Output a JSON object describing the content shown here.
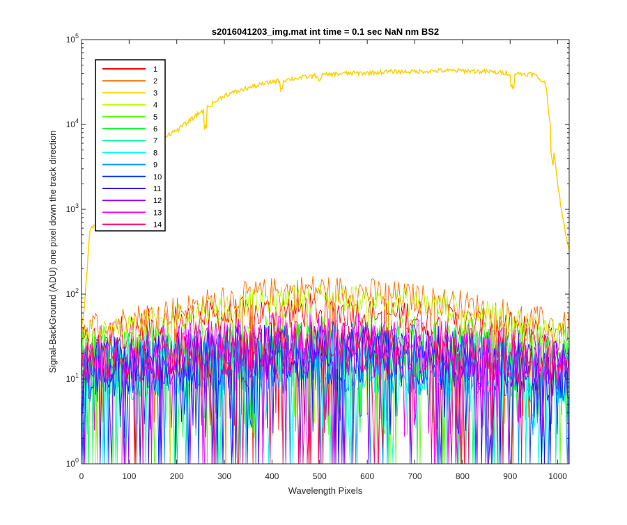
{
  "chart_data": {
    "type": "line",
    "title": "s2016041203_img.mat int time = 0.1 sec  NaN nm BS2",
    "xlabel": "Wavelength Pixels",
    "ylabel": "Signal-BackGround (ADU) one pixel down the track direction",
    "xlim": [
      0,
      1024
    ],
    "ylim": [
      1,
      100000
    ],
    "y_scale": "log",
    "x_ticks": [
      0,
      100,
      200,
      300,
      400,
      500,
      600,
      700,
      800,
      900,
      1000
    ],
    "x_tick_labels": [
      "0",
      "100",
      "200",
      "300",
      "400",
      "500",
      "600",
      "700",
      "800",
      "900",
      "1000"
    ],
    "y_ticks": [
      1,
      10,
      100,
      1000,
      10000,
      100000
    ],
    "y_tick_labels": [
      {
        "base": "10",
        "exp": "0"
      },
      {
        "base": "10",
        "exp": "1"
      },
      {
        "base": "10",
        "exp": "2"
      },
      {
        "base": "10",
        "exp": "3"
      },
      {
        "base": "10",
        "exp": "4"
      },
      {
        "base": "10",
        "exp": "5"
      }
    ],
    "grid": false,
    "legend_position": "top-left",
    "series": [
      {
        "name": "1",
        "color": "#ff0000",
        "profile": [
          [
            0,
            25
          ],
          [
            100,
            38
          ],
          [
            200,
            48
          ],
          [
            300,
            55
          ],
          [
            400,
            62
          ],
          [
            500,
            65
          ],
          [
            600,
            62
          ],
          [
            700,
            55
          ],
          [
            800,
            45
          ],
          [
            900,
            38
          ],
          [
            1000,
            30
          ],
          [
            1024,
            28
          ]
        ],
        "noise": 0.35
      },
      {
        "name": "2",
        "color": "#ff6a00",
        "profile": [
          [
            0,
            40
          ],
          [
            100,
            50
          ],
          [
            200,
            65
          ],
          [
            300,
            85
          ],
          [
            400,
            105
          ],
          [
            480,
            115
          ],
          [
            600,
            105
          ],
          [
            700,
            90
          ],
          [
            800,
            75
          ],
          [
            900,
            58
          ],
          [
            1000,
            42
          ],
          [
            1024,
            40
          ]
        ],
        "noise": 0.3
      },
      {
        "name": "3",
        "color": "#ffd000",
        "profile": [
          [
            0,
            40
          ],
          [
            5,
            60
          ],
          [
            12,
            200
          ],
          [
            18,
            600
          ],
          [
            25,
            620
          ],
          [
            40,
            700
          ],
          [
            60,
            1800
          ],
          [
            80,
            4000
          ],
          [
            100,
            4500
          ],
          [
            140,
            6000
          ],
          [
            180,
            7500
          ],
          [
            200,
            8500
          ],
          [
            250,
            14000
          ],
          [
            300,
            22000
          ],
          [
            350,
            27000
          ],
          [
            400,
            32000
          ],
          [
            450,
            35000
          ],
          [
            500,
            38000
          ],
          [
            550,
            40000
          ],
          [
            600,
            40500
          ],
          [
            650,
            42000
          ],
          [
            700,
            42000
          ],
          [
            750,
            43000
          ],
          [
            800,
            43000
          ],
          [
            850,
            42000
          ],
          [
            900,
            40000
          ],
          [
            950,
            39000
          ],
          [
            975,
            30000
          ],
          [
            985,
            9000
          ],
          [
            1000,
            2000
          ],
          [
            1010,
            800
          ],
          [
            1024,
            330
          ]
        ],
        "noise": 0.06,
        "dips": [
          [
            260,
            0.6
          ],
          [
            420,
            0.8
          ],
          [
            500,
            0.85
          ],
          [
            905,
            0.7
          ],
          [
            988,
            0.6
          ]
        ]
      },
      {
        "name": "4",
        "color": "#b5ff00",
        "profile": [
          [
            0,
            30
          ],
          [
            100,
            42
          ],
          [
            200,
            55
          ],
          [
            300,
            70
          ],
          [
            400,
            85
          ],
          [
            500,
            92
          ],
          [
            600,
            88
          ],
          [
            700,
            78
          ],
          [
            800,
            65
          ],
          [
            900,
            50
          ],
          [
            1000,
            36
          ],
          [
            1024,
            34
          ]
        ],
        "noise": 0.28
      },
      {
        "name": "5",
        "color": "#55ff00",
        "profile": [
          [
            0,
            18
          ],
          [
            200,
            25
          ],
          [
            500,
            30
          ],
          [
            800,
            25
          ],
          [
            1024,
            18
          ]
        ],
        "noise": 0.55
      },
      {
        "name": "6",
        "color": "#00ff33",
        "profile": [
          [
            0,
            14
          ],
          [
            200,
            18
          ],
          [
            500,
            22
          ],
          [
            800,
            18
          ],
          [
            1024,
            14
          ]
        ],
        "noise": 0.6
      },
      {
        "name": "7",
        "color": "#00ff99",
        "profile": [
          [
            0,
            12
          ],
          [
            200,
            15
          ],
          [
            500,
            18
          ],
          [
            800,
            15
          ],
          [
            1024,
            12
          ]
        ],
        "noise": 0.6
      },
      {
        "name": "8",
        "color": "#00ffee",
        "profile": [
          [
            0,
            11
          ],
          [
            200,
            14
          ],
          [
            500,
            16
          ],
          [
            800,
            14
          ],
          [
            1024,
            11
          ]
        ],
        "noise": 0.6
      },
      {
        "name": "9",
        "color": "#0099ff",
        "profile": [
          [
            0,
            11
          ],
          [
            200,
            14
          ],
          [
            500,
            16
          ],
          [
            800,
            14
          ],
          [
            1024,
            11
          ]
        ],
        "noise": 0.6
      },
      {
        "name": "10",
        "color": "#0033ff",
        "profile": [
          [
            0,
            12
          ],
          [
            200,
            16
          ],
          [
            500,
            20
          ],
          [
            800,
            16
          ],
          [
            1024,
            12
          ]
        ],
        "noise": 0.6
      },
      {
        "name": "11",
        "color": "#3300ff",
        "profile": [
          [
            0,
            13
          ],
          [
            200,
            18
          ],
          [
            500,
            22
          ],
          [
            800,
            18
          ],
          [
            1024,
            13
          ]
        ],
        "noise": 0.6
      },
      {
        "name": "12",
        "color": "#9900ff",
        "profile": [
          [
            0,
            13
          ],
          [
            200,
            18
          ],
          [
            500,
            24
          ],
          [
            800,
            18
          ],
          [
            1024,
            13
          ]
        ],
        "noise": 0.55
      },
      {
        "name": "13",
        "color": "#ff00ff",
        "profile": [
          [
            0,
            15
          ],
          [
            200,
            22
          ],
          [
            500,
            32
          ],
          [
            800,
            24
          ],
          [
            1024,
            15
          ]
        ],
        "noise": 0.5
      },
      {
        "name": "14",
        "color": "#ff0066",
        "profile": [
          [
            0,
            16
          ],
          [
            200,
            20
          ],
          [
            500,
            24
          ],
          [
            800,
            20
          ],
          [
            1024,
            16
          ]
        ],
        "noise": 0.5
      }
    ]
  }
}
